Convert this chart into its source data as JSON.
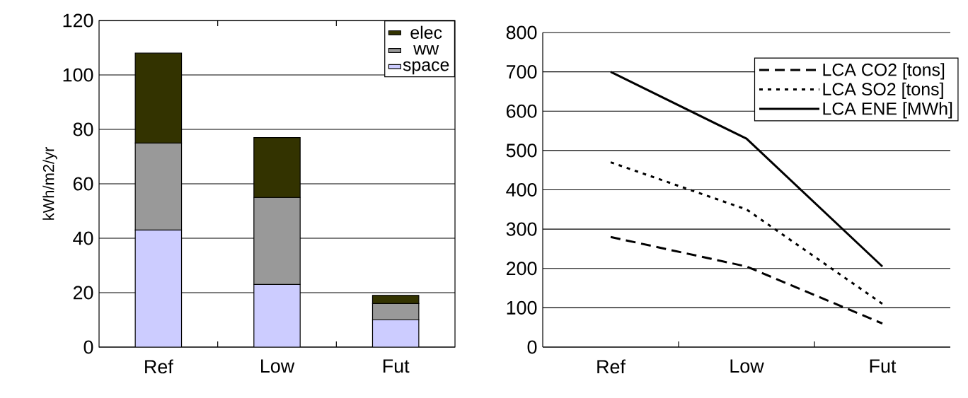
{
  "chart_data": [
    {
      "type": "bar",
      "stacked": true,
      "ylabel": "kWh/m2/yr",
      "categories": [
        "Ref",
        "Low",
        "Fut"
      ],
      "ylim": [
        0,
        120
      ],
      "yticks": [
        0,
        20,
        40,
        60,
        80,
        100,
        120
      ],
      "grid": "y",
      "legend": "top right",
      "series": [
        {
          "name": "space",
          "color": "#ccccff",
          "values": [
            43,
            23,
            10
          ]
        },
        {
          "name": "ww",
          "color": "#999999",
          "values": [
            32,
            32,
            6
          ]
        },
        {
          "name": "elec",
          "color": "#333300",
          "values": [
            33,
            22,
            3
          ]
        }
      ]
    },
    {
      "type": "line",
      "categories": [
        "Ref",
        "Low",
        "Fut"
      ],
      "ylim": [
        0,
        800
      ],
      "yticks": [
        0,
        100,
        200,
        300,
        400,
        500,
        600,
        700,
        800
      ],
      "grid": "y",
      "legend": "top right",
      "series": [
        {
          "name": "LCA CO2 [tons]",
          "color": "#000000",
          "line_style": "dashed",
          "values": [
            280,
            205,
            60
          ]
        },
        {
          "name": "LCA SO2 [tons]",
          "color": "#000000",
          "line_style": "dotted",
          "values": [
            470,
            350,
            110
          ]
        },
        {
          "name": "LCA ENE [MWh]",
          "color": "#000000",
          "line_style": "solid",
          "values": [
            700,
            530,
            205
          ]
        }
      ]
    }
  ]
}
